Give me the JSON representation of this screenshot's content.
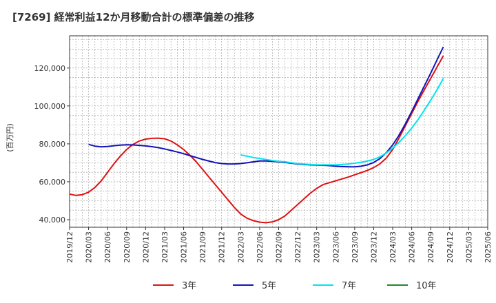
{
  "chart_data": {
    "type": "line",
    "title": "[7269]  経常利益12か月移動合計の標準偏差の推移",
    "ylabel": "(百万円)",
    "xlabel": "",
    "ylim": [
      36000,
      137000
    ],
    "yticks": [
      40000,
      60000,
      80000,
      100000,
      120000
    ],
    "ytick_labels": [
      "40,000",
      "60,000",
      "80,000",
      "100,000",
      "120,000"
    ],
    "xlim": [
      "2019-12",
      "2025-06"
    ],
    "xticks": [
      "2019/12",
      "2020/03",
      "2020/06",
      "2020/09",
      "2020/12",
      "2021/03",
      "2021/06",
      "2021/09",
      "2021/12",
      "2022/03",
      "2022/06",
      "2022/09",
      "2022/12",
      "2023/03",
      "2023/06",
      "2023/09",
      "2023/12",
      "2024/03",
      "2024/06",
      "2024/09",
      "2024/12",
      "2025/03",
      "2025/06"
    ],
    "grid": true,
    "legend_position": "bottom",
    "series": [
      {
        "name": "3年",
        "color": "#dd1111",
        "points": [
          [
            "2019-12",
            53500
          ],
          [
            "2020-01",
            52800
          ],
          [
            "2020-02",
            53200
          ],
          [
            "2020-03",
            54500
          ],
          [
            "2020-04",
            57000
          ],
          [
            "2020-05",
            60500
          ],
          [
            "2020-06",
            65000
          ],
          [
            "2020-07",
            69500
          ],
          [
            "2020-08",
            73500
          ],
          [
            "2020-09",
            77000
          ],
          [
            "2020-10",
            79700
          ],
          [
            "2020-11",
            81500
          ],
          [
            "2020-12",
            82500
          ],
          [
            "2021-01",
            82900
          ],
          [
            "2021-02",
            83000
          ],
          [
            "2021-03",
            82700
          ],
          [
            "2021-04",
            81500
          ],
          [
            "2021-05",
            79500
          ],
          [
            "2021-06",
            77000
          ],
          [
            "2021-07",
            74000
          ],
          [
            "2021-08",
            70500
          ],
          [
            "2021-09",
            66500
          ],
          [
            "2021-10",
            62500
          ],
          [
            "2021-11",
            58500
          ],
          [
            "2021-12",
            54500
          ],
          [
            "2022-01",
            50500
          ],
          [
            "2022-02",
            46500
          ],
          [
            "2022-03",
            43000
          ],
          [
            "2022-04",
            40800
          ],
          [
            "2022-05",
            39500
          ],
          [
            "2022-06",
            38700
          ],
          [
            "2022-07",
            38400
          ],
          [
            "2022-08",
            38800
          ],
          [
            "2022-09",
            40000
          ],
          [
            "2022-10",
            42000
          ],
          [
            "2022-11",
            45000
          ],
          [
            "2022-12",
            48000
          ],
          [
            "2023-01",
            51000
          ],
          [
            "2023-02",
            54000
          ],
          [
            "2023-03",
            56500
          ],
          [
            "2023-04",
            58500
          ],
          [
            "2023-05",
            59500
          ],
          [
            "2023-06",
            60500
          ],
          [
            "2023-07",
            61500
          ],
          [
            "2023-08",
            62500
          ],
          [
            "2023-09",
            63700
          ],
          [
            "2023-10",
            64800
          ],
          [
            "2023-11",
            66000
          ],
          [
            "2023-12",
            67500
          ],
          [
            "2024-01",
            69500
          ],
          [
            "2024-02",
            72500
          ],
          [
            "2024-03",
            77000
          ],
          [
            "2024-04",
            83000
          ],
          [
            "2024-05",
            89500
          ],
          [
            "2024-06",
            96000
          ],
          [
            "2024-07",
            102500
          ],
          [
            "2024-08",
            108500
          ],
          [
            "2024-09",
            114500
          ],
          [
            "2024-10",
            120500
          ],
          [
            "2024-11",
            126500
          ]
        ]
      },
      {
        "name": "5年",
        "color": "#1111bb",
        "points": [
          [
            "2020-03",
            79700
          ],
          [
            "2020-04",
            78800
          ],
          [
            "2020-05",
            78400
          ],
          [
            "2020-06",
            78600
          ],
          [
            "2020-07",
            79000
          ],
          [
            "2020-08",
            79300
          ],
          [
            "2020-09",
            79500
          ],
          [
            "2020-10",
            79400
          ],
          [
            "2020-11",
            79200
          ],
          [
            "2020-12",
            78900
          ],
          [
            "2021-01",
            78500
          ],
          [
            "2021-02",
            78000
          ],
          [
            "2021-03",
            77300
          ],
          [
            "2021-04",
            76500
          ],
          [
            "2021-05",
            75700
          ],
          [
            "2021-06",
            74800
          ],
          [
            "2021-07",
            73800
          ],
          [
            "2021-08",
            72800
          ],
          [
            "2021-09",
            71800
          ],
          [
            "2021-10",
            70900
          ],
          [
            "2021-11",
            70100
          ],
          [
            "2021-12",
            69600
          ],
          [
            "2022-01",
            69400
          ],
          [
            "2022-02",
            69400
          ],
          [
            "2022-03",
            69600
          ],
          [
            "2022-04",
            70000
          ],
          [
            "2022-05",
            70500
          ],
          [
            "2022-06",
            71000
          ],
          [
            "2022-07",
            71000
          ],
          [
            "2022-08",
            70800
          ],
          [
            "2022-09",
            70500
          ],
          [
            "2022-10",
            70200
          ],
          [
            "2022-11",
            69800
          ],
          [
            "2022-12",
            69400
          ],
          [
            "2023-01",
            69100
          ],
          [
            "2023-02",
            68900
          ],
          [
            "2023-03",
            68800
          ],
          [
            "2023-04",
            68700
          ],
          [
            "2023-05",
            68500
          ],
          [
            "2023-06",
            68200
          ],
          [
            "2023-07",
            68000
          ],
          [
            "2023-08",
            67900
          ],
          [
            "2023-09",
            67900
          ],
          [
            "2023-10",
            68200
          ],
          [
            "2023-11",
            68900
          ],
          [
            "2023-12",
            70200
          ],
          [
            "2024-01",
            72300
          ],
          [
            "2024-02",
            75400
          ],
          [
            "2024-03",
            79400
          ],
          [
            "2024-04",
            84500
          ],
          [
            "2024-05",
            90500
          ],
          [
            "2024-06",
            97000
          ],
          [
            "2024-07",
            103800
          ],
          [
            "2024-08",
            110500
          ],
          [
            "2024-09",
            117300
          ],
          [
            "2024-10",
            124300
          ],
          [
            "2024-11",
            131200
          ]
        ]
      },
      {
        "name": "7年",
        "color": "#00e5ee",
        "points": [
          [
            "2022-03",
            74200
          ],
          [
            "2022-04",
            73500
          ],
          [
            "2022-05",
            72800
          ],
          [
            "2022-06",
            72300
          ],
          [
            "2022-07",
            71700
          ],
          [
            "2022-08",
            71200
          ],
          [
            "2022-09",
            70800
          ],
          [
            "2022-10",
            70500
          ],
          [
            "2022-11",
            70000
          ],
          [
            "2022-12",
            69600
          ],
          [
            "2023-01",
            69300
          ],
          [
            "2023-02",
            69100
          ],
          [
            "2023-03",
            69000
          ],
          [
            "2023-04",
            68900
          ],
          [
            "2023-05",
            68900
          ],
          [
            "2023-06",
            68900
          ],
          [
            "2023-07",
            69100
          ],
          [
            "2023-08",
            69400
          ],
          [
            "2023-09",
            69800
          ],
          [
            "2023-10",
            70300
          ],
          [
            "2023-11",
            70900
          ],
          [
            "2023-12",
            71800
          ],
          [
            "2024-01",
            73200
          ],
          [
            "2024-02",
            75200
          ],
          [
            "2024-03",
            77700
          ],
          [
            "2024-04",
            80800
          ],
          [
            "2024-05",
            84300
          ],
          [
            "2024-06",
            88300
          ],
          [
            "2024-07",
            92800
          ],
          [
            "2024-08",
            97800
          ],
          [
            "2024-09",
            103000
          ],
          [
            "2024-10",
            108500
          ],
          [
            "2024-11",
            114500
          ]
        ]
      },
      {
        "name": "10年",
        "color": "#228822",
        "points": []
      }
    ]
  }
}
